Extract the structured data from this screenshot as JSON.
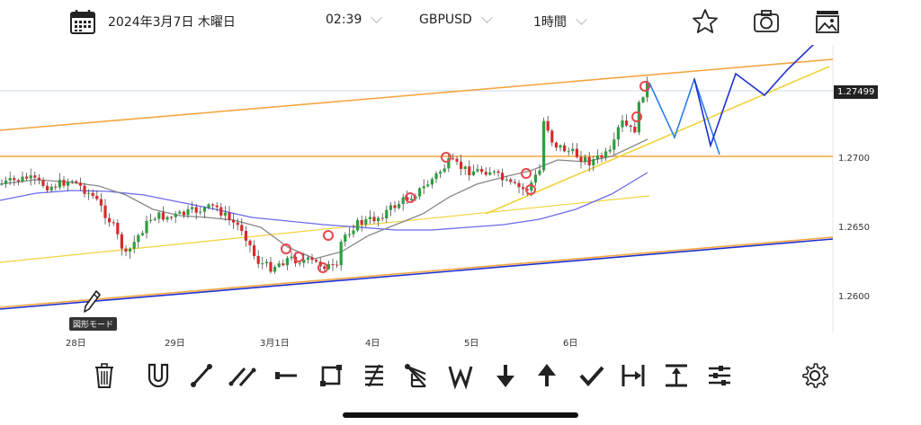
{
  "header": {
    "date": "2024年3月7日 木曜日",
    "time": "02:39",
    "symbol": "GBPUSD",
    "timeframe": "1時間"
  },
  "price_axis": {
    "current": "1.27499",
    "labels": [
      "1.2700",
      "1.2650",
      "1.2600"
    ]
  },
  "x_axis": {
    "labels": [
      "28日",
      "29日",
      "3月1日",
      "4日",
      "5日",
      "6日"
    ]
  },
  "drawing_mode_label": "図形モード",
  "colors": {
    "up": "#2e9e3e",
    "down": "#d62b2b",
    "orange": "#f5a540",
    "yellow": "#f2d23a",
    "ma_gray": "#888888",
    "ma_blue": "#6b6bef",
    "forecast_blue": "#2b7de9",
    "forecast_navy": "#1f2fd0"
  },
  "toolbar": {
    "tools": [
      "trash-icon",
      "magnet-icon",
      "line-icon",
      "parallel-lines-icon",
      "horizontal-line-icon",
      "rectangle-icon",
      "fibonacci-icon",
      "fib-fan-icon",
      "wave-icon",
      "arrow-down-icon",
      "arrow-up-icon",
      "check-icon",
      "range-h-icon",
      "range-v-icon",
      "settings-list-icon",
      "gear-icon"
    ]
  }
}
